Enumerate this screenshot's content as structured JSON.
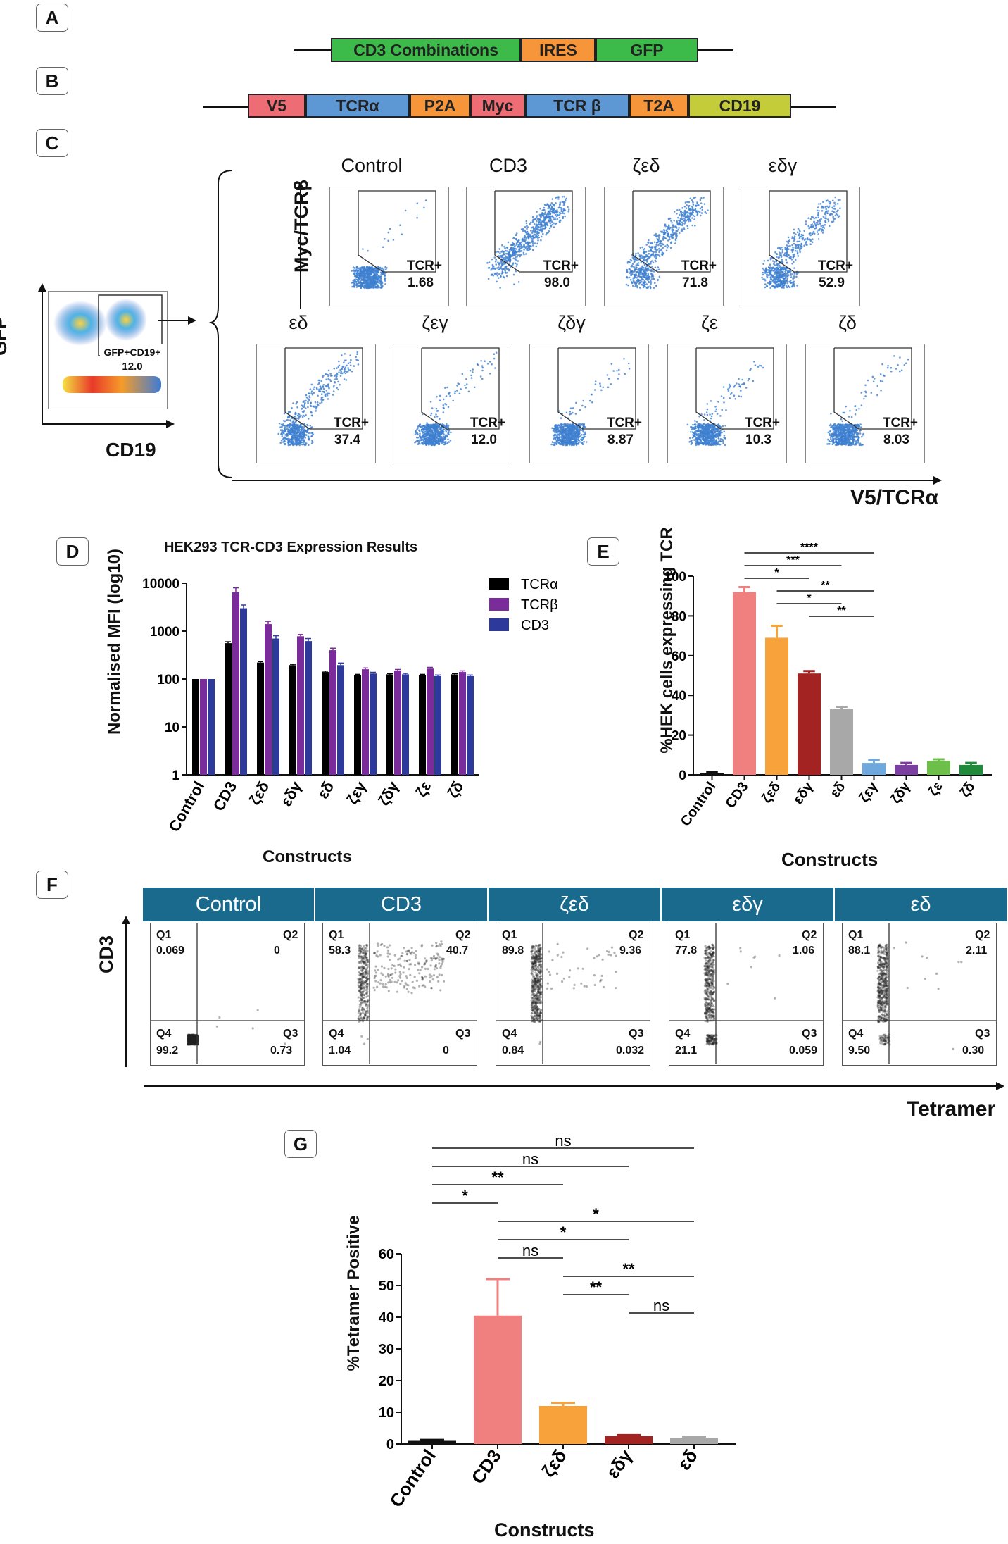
{
  "panels": {
    "a": "A",
    "b": "B",
    "c": "C",
    "d": "D",
    "e": "E",
    "f": "F",
    "g": "G"
  },
  "construct_a": [
    {
      "label": "CD3 Combinations",
      "color": "#3dbb4a"
    },
    {
      "label": "IRES",
      "color": "#f7953a"
    },
    {
      "label": "GFP",
      "color": "#3dbb4a"
    }
  ],
  "construct_b": [
    {
      "label": "V5",
      "color": "#ee6d74"
    },
    {
      "label": "TCRα",
      "color": "#5d98d5"
    },
    {
      "label": "P2A",
      "color": "#f7953a"
    },
    {
      "label": "Myc",
      "color": "#ee6d74"
    },
    {
      "label": "TCR β",
      "color": "#5d98d5"
    },
    {
      "label": "T2A",
      "color": "#f7953a"
    },
    {
      "label": "CD19",
      "color": "#c5cc3a"
    }
  ],
  "panel_c": {
    "gate_axes": {
      "y": "GFP",
      "x": "CD19"
    },
    "gate_label": "GFP+CD19+",
    "gate_value": "12.0",
    "y_axis": "Myc/TCRβ",
    "x_axis": "V5/TCRα",
    "plots": [
      {
        "name": "Control",
        "label": "TCR+",
        "value": "1.68"
      },
      {
        "name": "CD3",
        "label": "TCR+",
        "value": "98.0"
      },
      {
        "name": "ζεδ",
        "label": "TCR+",
        "value": "71.8"
      },
      {
        "name": "εδγ",
        "label": "TCR+",
        "value": "52.9"
      },
      {
        "name": "εδ",
        "label": "TCR+",
        "value": "37.4"
      },
      {
        "name": "ζεγ",
        "label": "TCR+",
        "value": "12.0"
      },
      {
        "name": "ζδγ",
        "label": "TCR+",
        "value": "8.87"
      },
      {
        "name": "ζε",
        "label": "TCR+",
        "value": "10.3"
      },
      {
        "name": "ζδ",
        "label": "TCR+",
        "value": "8.03"
      }
    ]
  },
  "panel_f": {
    "y_axis": "CD3",
    "x_axis": "Tetramer",
    "plots": [
      {
        "name": "Control",
        "q1": "0.069",
        "q2": "0",
        "q3": "0.73",
        "q4": "99.2"
      },
      {
        "name": "CD3",
        "q1": "58.3",
        "q2": "40.7",
        "q3": "0",
        "q4": "1.04"
      },
      {
        "name": "ζεδ",
        "q1": "89.8",
        "q2": "9.36",
        "q3": "0.032",
        "q4": "0.84"
      },
      {
        "name": "εδγ",
        "q1": "77.8",
        "q2": "1.06",
        "q3": "0.059",
        "q4": "21.1"
      },
      {
        "name": "εδ",
        "q1": "88.1",
        "q2": "2.11",
        "q3": "0.30",
        "q4": "9.50"
      }
    ],
    "quad_names": {
      "q1": "Q1",
      "q2": "Q2",
      "q3": "Q3",
      "q4": "Q4"
    }
  },
  "chart_data": [
    {
      "id": "D",
      "type": "bar",
      "title": "HEK293 TCR-CD3 Expression Results",
      "xlabel": "Constructs",
      "ylabel": "Normalised MFI (log10)",
      "yscale": "log",
      "ylim": [
        1,
        10000
      ],
      "yticks": [
        "1",
        "10",
        "100",
        "1000",
        "10000"
      ],
      "categories": [
        "Control",
        "CD3",
        "ζεδ",
        "εδγ",
        "εδ",
        "ζεγ",
        "ζδγ",
        "ζε",
        "ζδ"
      ],
      "series": [
        {
          "name": "TCRα",
          "color": "#000000",
          "values": [
            100,
            560,
            220,
            195,
            140,
            120,
            125,
            120,
            125
          ]
        },
        {
          "name": "TCRβ",
          "color": "#7a2d9a",
          "values": [
            100,
            6500,
            1400,
            780,
            400,
            160,
            150,
            165,
            140
          ]
        },
        {
          "name": "CD3",
          "color": "#2e3a9b",
          "values": [
            100,
            3000,
            700,
            620,
            195,
            130,
            125,
            115,
            115
          ]
        }
      ],
      "errors_hi": [
        [
          0,
          40,
          10,
          8,
          6,
          5,
          5,
          5,
          5
        ],
        [
          0,
          1500,
          200,
          70,
          40,
          10,
          8,
          10,
          8
        ],
        [
          0,
          500,
          100,
          80,
          20,
          8,
          6,
          6,
          6
        ]
      ]
    },
    {
      "id": "E",
      "type": "bar",
      "xlabel": "Constructs",
      "ylabel": "%HEK cells expressing TCR",
      "ylim": [
        0,
        100
      ],
      "yticks": [
        "0",
        "20",
        "40",
        "60",
        "80",
        "100"
      ],
      "categories": [
        "Control",
        "CD3",
        "ζεδ",
        "εδγ",
        "εδ",
        "ζεγ",
        "ζδγ",
        "ζε",
        "ζδ"
      ],
      "values": [
        1,
        92,
        69,
        51,
        33,
        6,
        5,
        7,
        5
      ],
      "errors": [
        0.5,
        2.5,
        6,
        1.2,
        1.2,
        1.5,
        1,
        0.8,
        1
      ],
      "colors": [
        "#111111",
        "#f08080",
        "#f7a23a",
        "#a32323",
        "#a8a8a8",
        "#6fa8dc",
        "#7b3fa0",
        "#6cc04a",
        "#1f8a3a"
      ],
      "significance": [
        {
          "from": 1,
          "to": 5,
          "label": "****"
        },
        {
          "from": 1,
          "to": 4,
          "label": "***"
        },
        {
          "from": 1,
          "to": 3,
          "label": "*"
        },
        {
          "from": 2,
          "to": 5,
          "label": "**"
        },
        {
          "from": 2,
          "to": 4,
          "label": "*"
        },
        {
          "from": 3,
          "to": 5,
          "label": "**"
        }
      ]
    },
    {
      "id": "G",
      "type": "bar",
      "xlabel": "Constructs",
      "ylabel": "%Tetramer Positive",
      "ylim": [
        0,
        60
      ],
      "yticks": [
        "0",
        "10",
        "20",
        "30",
        "40",
        "50",
        "60"
      ],
      "categories": [
        "Control",
        "CD3",
        "ζεδ",
        "εδγ",
        "εδ"
      ],
      "values": [
        1,
        40.5,
        12,
        2.5,
        2
      ],
      "errors": [
        0.3,
        11.5,
        1,
        0.3,
        0.3
      ],
      "colors": [
        "#111111",
        "#f08080",
        "#f7a23a",
        "#a32323",
        "#a8a8a8"
      ],
      "significance": [
        {
          "from": 0,
          "to": 4,
          "label": "ns"
        },
        {
          "from": 0,
          "to": 3,
          "label": "ns"
        },
        {
          "from": 0,
          "to": 2,
          "label": "**"
        },
        {
          "from": 0,
          "to": 1,
          "label": "*"
        },
        {
          "from": 1,
          "to": 4,
          "label": "*"
        },
        {
          "from": 1,
          "to": 3,
          "label": "*"
        },
        {
          "from": 1,
          "to": 2,
          "label": "ns"
        },
        {
          "from": 2,
          "to": 4,
          "label": "**"
        },
        {
          "from": 2,
          "to": 3,
          "label": "**"
        },
        {
          "from": 3,
          "to": 4,
          "label": "ns"
        }
      ]
    }
  ]
}
